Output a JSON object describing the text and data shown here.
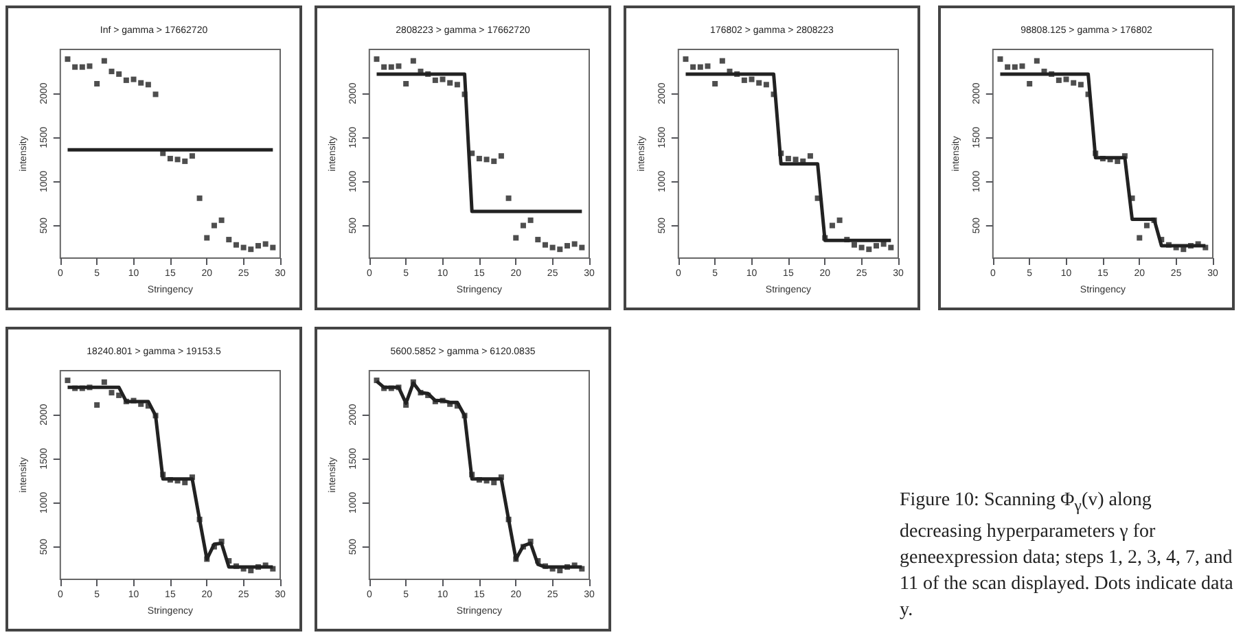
{
  "chart_data": [
    {
      "type": "scatter",
      "title": "Inf > gamma > 17662720",
      "xlabel": "Stringency",
      "ylabel": "intensity",
      "xlim": [
        0,
        30
      ],
      "xticks": [
        0,
        5,
        10,
        15,
        20,
        25,
        30
      ],
      "ylim": [
        130,
        2500
      ],
      "yticks": [
        500,
        1000,
        1500,
        2000
      ],
      "marker": "square",
      "x": [
        1,
        2,
        3,
        4,
        5,
        6,
        7,
        8,
        9,
        10,
        11,
        12,
        13,
        14,
        15,
        16,
        17,
        18,
        19,
        20,
        21,
        22,
        23,
        24,
        25,
        26,
        27,
        28,
        29
      ],
      "series": [
        {
          "color": "#222222",
          "values": [
            2390,
            2300,
            2300,
            2310,
            2110,
            2370,
            2250,
            2220,
            2150,
            2160,
            2120,
            2100,
            1990,
            1320,
            1260,
            1250,
            1230,
            1290,
            810,
            360,
            500,
            560,
            340,
            280,
            250,
            230,
            270,
            290,
            250
          ]
        },
        {
          "type": "line",
          "marker": "none",
          "color": "#222222",
          "x": [
            1,
            29
          ],
          "values": [
            1360,
            1360
          ]
        }
      ]
    },
    {
      "type": "scatter",
      "title": "2808223 > gamma > 17662720",
      "xlabel": "Stringency",
      "ylabel": "intensity",
      "xlim": [
        0,
        30
      ],
      "xticks": [
        0,
        5,
        10,
        15,
        20,
        25,
        30
      ],
      "ylim": [
        130,
        2500
      ],
      "yticks": [
        500,
        1000,
        1500,
        2000
      ],
      "marker": "square",
      "x": [
        1,
        2,
        3,
        4,
        5,
        6,
        7,
        8,
        9,
        10,
        11,
        12,
        13,
        14,
        15,
        16,
        17,
        18,
        19,
        20,
        21,
        22,
        23,
        24,
        25,
        26,
        27,
        28,
        29
      ],
      "series": [
        {
          "color": "#222222",
          "values": [
            2390,
            2300,
            2300,
            2310,
            2110,
            2370,
            2250,
            2220,
            2150,
            2160,
            2120,
            2100,
            1990,
            1320,
            1260,
            1250,
            1230,
            1290,
            810,
            360,
            500,
            560,
            340,
            280,
            250,
            230,
            270,
            290,
            250
          ]
        },
        {
          "type": "line",
          "marker": "none",
          "color": "#222222",
          "x": [
            1,
            13,
            14,
            29
          ],
          "values": [
            2220,
            2220,
            660,
            660
          ]
        }
      ]
    },
    {
      "type": "scatter",
      "title": "176802 > gamma > 2808223",
      "xlabel": "Stringency",
      "ylabel": "intensity",
      "xlim": [
        0,
        30
      ],
      "xticks": [
        0,
        5,
        10,
        15,
        20,
        25,
        30
      ],
      "ylim": [
        130,
        2500
      ],
      "yticks": [
        500,
        1000,
        1500,
        2000
      ],
      "marker": "square",
      "x": [
        1,
        2,
        3,
        4,
        5,
        6,
        7,
        8,
        9,
        10,
        11,
        12,
        13,
        14,
        15,
        16,
        17,
        18,
        19,
        20,
        21,
        22,
        23,
        24,
        25,
        26,
        27,
        28,
        29
      ],
      "series": [
        {
          "color": "#222222",
          "values": [
            2390,
            2300,
            2300,
            2310,
            2110,
            2370,
            2250,
            2220,
            2150,
            2160,
            2120,
            2100,
            1990,
            1320,
            1260,
            1250,
            1230,
            1290,
            810,
            360,
            500,
            560,
            340,
            280,
            250,
            230,
            270,
            290,
            250
          ]
        },
        {
          "type": "line",
          "marker": "none",
          "color": "#222222",
          "x": [
            1,
            13,
            14,
            19,
            20,
            29
          ],
          "values": [
            2220,
            2220,
            1200,
            1200,
            330,
            330
          ]
        }
      ]
    },
    {
      "type": "scatter",
      "title": "98808.125 > gamma > 176802",
      "xlabel": "Stringency",
      "ylabel": "intensity",
      "xlim": [
        0,
        30
      ],
      "xticks": [
        0,
        5,
        10,
        15,
        20,
        25,
        30
      ],
      "ylim": [
        130,
        2500
      ],
      "yticks": [
        500,
        1000,
        1500,
        2000
      ],
      "marker": "square",
      "x": [
        1,
        2,
        3,
        4,
        5,
        6,
        7,
        8,
        9,
        10,
        11,
        12,
        13,
        14,
        15,
        16,
        17,
        18,
        19,
        20,
        21,
        22,
        23,
        24,
        25,
        26,
        27,
        28,
        29
      ],
      "series": [
        {
          "color": "#222222",
          "values": [
            2390,
            2300,
            2300,
            2310,
            2110,
            2370,
            2250,
            2220,
            2150,
            2160,
            2120,
            2100,
            1990,
            1320,
            1260,
            1250,
            1230,
            1290,
            810,
            360,
            500,
            560,
            340,
            280,
            250,
            230,
            270,
            290,
            250
          ]
        },
        {
          "type": "line",
          "marker": "none",
          "color": "#222222",
          "x": [
            1,
            13,
            14,
            18,
            19,
            22,
            23,
            29
          ],
          "values": [
            2220,
            2220,
            1270,
            1270,
            570,
            570,
            270,
            270
          ]
        }
      ]
    },
    {
      "type": "scatter",
      "title": "18240.801 > gamma > 19153.5",
      "xlabel": "Stringency",
      "ylabel": "intensity",
      "xlim": [
        0,
        30
      ],
      "xticks": [
        0,
        5,
        10,
        15,
        20,
        25,
        30
      ],
      "ylim": [
        130,
        2500
      ],
      "yticks": [
        500,
        1000,
        1500,
        2000
      ],
      "marker": "square",
      "x": [
        1,
        2,
        3,
        4,
        5,
        6,
        7,
        8,
        9,
        10,
        11,
        12,
        13,
        14,
        15,
        16,
        17,
        18,
        19,
        20,
        21,
        22,
        23,
        24,
        25,
        26,
        27,
        28,
        29
      ],
      "series": [
        {
          "color": "#222222",
          "values": [
            2390,
            2300,
            2300,
            2310,
            2110,
            2370,
            2250,
            2220,
            2150,
            2160,
            2120,
            2100,
            1990,
            1320,
            1260,
            1250,
            1230,
            1290,
            810,
            360,
            500,
            560,
            340,
            280,
            250,
            230,
            270,
            290,
            250
          ]
        },
        {
          "type": "line",
          "marker": "none",
          "color": "#222222",
          "x": [
            1,
            2,
            3,
            4,
            5,
            6,
            7,
            8,
            9,
            10,
            11,
            12,
            13,
            14,
            15,
            16,
            17,
            18,
            19,
            20,
            21,
            22,
            23,
            24,
            25,
            26,
            27,
            28,
            29
          ],
          "values": [
            2310,
            2310,
            2310,
            2310,
            2310,
            2310,
            2310,
            2310,
            2150,
            2150,
            2150,
            2150,
            1990,
            1270,
            1270,
            1270,
            1270,
            1270,
            810,
            360,
            530,
            540,
            270,
            270,
            270,
            270,
            270,
            270,
            270
          ]
        }
      ]
    },
    {
      "type": "scatter",
      "title": "5600.5852 > gamma > 6120.0835",
      "xlabel": "Stringency",
      "ylabel": "intensity",
      "xlim": [
        0,
        30
      ],
      "xticks": [
        0,
        5,
        10,
        15,
        20,
        25,
        30
      ],
      "ylim": [
        130,
        2500
      ],
      "yticks": [
        500,
        1000,
        1500,
        2000
      ],
      "marker": "square",
      "x": [
        1,
        2,
        3,
        4,
        5,
        6,
        7,
        8,
        9,
        10,
        11,
        12,
        13,
        14,
        15,
        16,
        17,
        18,
        19,
        20,
        21,
        22,
        23,
        24,
        25,
        26,
        27,
        28,
        29
      ],
      "annotations": [
        "Figure 10: Scanning Φ$_{γ}$(v) along decreasing hyperparameters γ for geneexpression data; steps 1, 2, 3, 4, 7, and 11 of the scan displayed. Dots indicate data y."
      ],
      "series": [
        {
          "color": "#222222",
          "values": [
            2390,
            2300,
            2300,
            2310,
            2110,
            2370,
            2250,
            2220,
            2150,
            2160,
            2120,
            2100,
            1990,
            1320,
            1260,
            1250,
            1230,
            1290,
            810,
            360,
            500,
            560,
            340,
            280,
            250,
            230,
            270,
            290,
            250
          ]
        },
        {
          "type": "line",
          "marker": "none",
          "color": "#222222",
          "x": [
            1,
            2,
            3,
            4,
            5,
            6,
            7,
            8,
            9,
            10,
            11,
            12,
            13,
            14,
            15,
            16,
            17,
            18,
            19,
            20,
            21,
            22,
            23,
            24,
            25,
            26,
            27,
            28,
            29
          ],
          "values": [
            2380,
            2310,
            2310,
            2310,
            2130,
            2360,
            2250,
            2240,
            2160,
            2160,
            2140,
            2140,
            1990,
            1270,
            1270,
            1270,
            1270,
            1270,
            810,
            360,
            510,
            540,
            300,
            270,
            270,
            270,
            270,
            270,
            270
          ]
        }
      ]
    }
  ]
}
